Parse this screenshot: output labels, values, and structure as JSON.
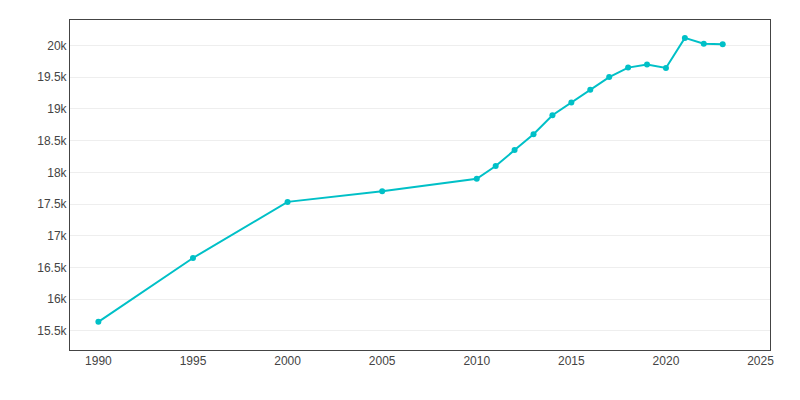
{
  "chart_data": {
    "type": "line",
    "x": [
      1990,
      1995,
      2000,
      2005,
      2010,
      2011,
      2012,
      2013,
      2014,
      2015,
      2016,
      2017,
      2018,
      2019,
      2020,
      2021,
      2022,
      2023
    ],
    "values": [
      15644,
      16650,
      17534,
      17700,
      17899,
      18100,
      18350,
      18600,
      18900,
      19100,
      19300,
      19500,
      19650,
      19700,
      19645,
      20118,
      20027,
      20016
    ],
    "color": "#00c0c7",
    "marker": "circle",
    "xlim": [
      1988.5,
      2025.5
    ],
    "xticks": [
      1990,
      1995,
      2000,
      2005,
      2010,
      2015,
      2020,
      2025
    ],
    "ylim": [
      15200,
      20400
    ],
    "yticks": [
      {
        "value": 15500,
        "label": "15.5k"
      },
      {
        "value": 16000,
        "label": "16k"
      },
      {
        "value": 16500,
        "label": "16.5k"
      },
      {
        "value": 17000,
        "label": "17k"
      },
      {
        "value": 17500,
        "label": "17.5k"
      },
      {
        "value": 18000,
        "label": "18k"
      },
      {
        "value": 18500,
        "label": "18.5k"
      },
      {
        "value": 19000,
        "label": "19k"
      },
      {
        "value": 19500,
        "label": "19.5k"
      },
      {
        "value": 20000,
        "label": "20k"
      }
    ],
    "grid": "y"
  }
}
